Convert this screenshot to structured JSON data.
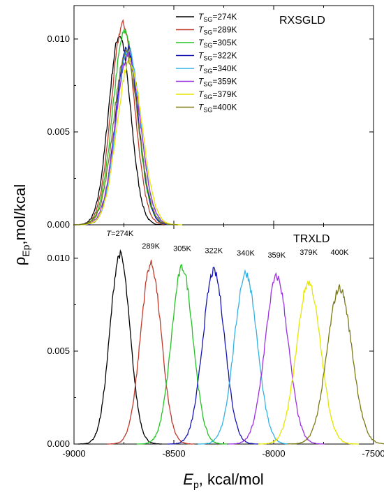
{
  "chart_data": [
    {
      "type": "line",
      "panel_title": "RXSGLD",
      "xlim": [
        -9000,
        -7500
      ],
      "ylim": [
        0,
        0.0118
      ],
      "y_ticks": [
        "0.000",
        "0.005",
        "0.010"
      ],
      "legend_position": "top",
      "series": [
        {
          "legend_sub": "SG",
          "legend_value": "=274K",
          "color": "#000000",
          "center": -8772,
          "width": 55,
          "peak": 0.0102
        },
        {
          "legend_sub": "SG",
          "legend_value": "=289K",
          "color": "#c0392b",
          "center": -8755,
          "width": 58,
          "peak": 0.0108
        },
        {
          "legend_sub": "SG",
          "legend_value": "=305K",
          "color": "#22c322",
          "center": -8745,
          "width": 60,
          "peak": 0.0104
        },
        {
          "legend_sub": "SG",
          "legend_value": "=322K",
          "color": "#1414b4",
          "center": -8735,
          "width": 57,
          "peak": 0.0096
        },
        {
          "legend_sub": "SG",
          "legend_value": "=340K",
          "color": "#33b2e5",
          "center": -8728,
          "width": 60,
          "peak": 0.0094
        },
        {
          "legend_sub": "SG",
          "legend_value": "=359K",
          "color": "#9b30e0",
          "center": -8730,
          "width": 62,
          "peak": 0.0091
        },
        {
          "legend_sub": "SG",
          "legend_value": "=379K",
          "color": "#e6e600",
          "center": -8722,
          "width": 63,
          "peak": 0.0088
        },
        {
          "legend_sub": "SG",
          "legend_value": "=400K",
          "color": "#7a7a14",
          "center": -8740,
          "width": 62,
          "peak": 0.0092
        }
      ]
    },
    {
      "type": "line",
      "panel_title": "TRXLD",
      "xlim": [
        -9000,
        -7500
      ],
      "ylim": [
        0,
        0.0118
      ],
      "x_ticks": [
        "-9000",
        "-8500",
        "-8000",
        "-7500"
      ],
      "y_ticks": [
        "0.000",
        "0.005",
        "0.010"
      ],
      "series": [
        {
          "label": "T=274K",
          "color": "#000000",
          "center": -8770,
          "width": 50,
          "peak": 0.0102
        },
        {
          "label": "289K",
          "color": "#c0392b",
          "center": -8615,
          "width": 52,
          "peak": 0.0097
        },
        {
          "label": "305K",
          "color": "#22c322",
          "center": -8458,
          "width": 54,
          "peak": 0.0095
        },
        {
          "label": "322K",
          "color": "#1414b4",
          "center": -8300,
          "width": 55,
          "peak": 0.0093
        },
        {
          "label": "340K",
          "color": "#33b2e5",
          "center": -8140,
          "width": 57,
          "peak": 0.0092
        },
        {
          "label": "359K",
          "color": "#9b30e0",
          "center": -7985,
          "width": 58,
          "peak": 0.009
        },
        {
          "label": "379K",
          "color": "#e6e600",
          "center": -7825,
          "width": 60,
          "peak": 0.0087
        },
        {
          "label": "400K",
          "color": "#7a7a14",
          "center": -7670,
          "width": 62,
          "peak": 0.0084
        }
      ]
    }
  ],
  "axes": {
    "ylabel_main": "ρ",
    "ylabel_sub": "Ep",
    "ylabel_rest": ",mol/kcal",
    "xlabel_main": "E",
    "xlabel_sub": "p",
    "xlabel_rest": ", kcal/mol"
  }
}
